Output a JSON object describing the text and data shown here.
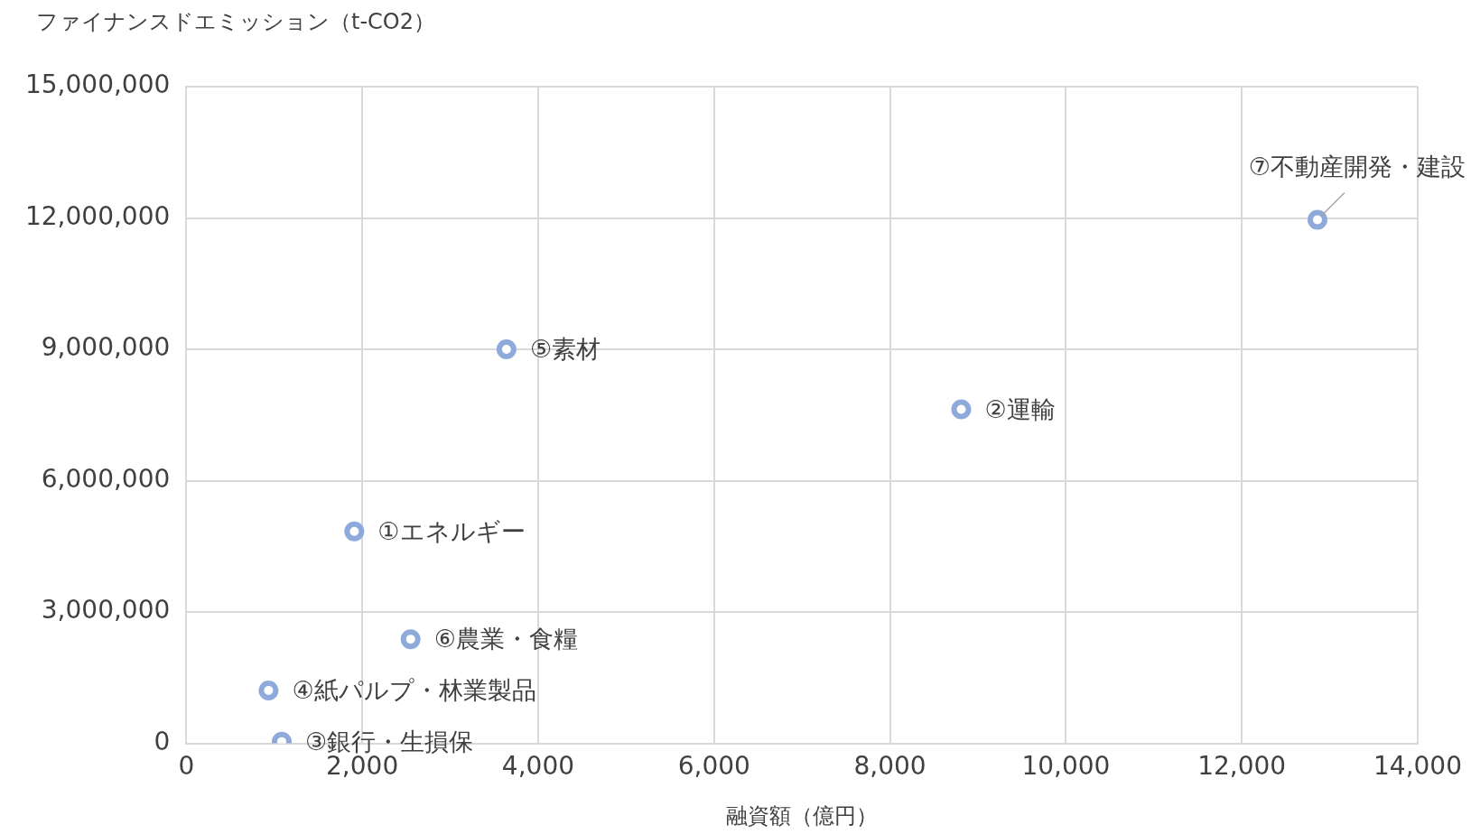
{
  "chart_data": {
    "type": "scatter",
    "xlabel": "融資額（億円）",
    "ylabel": "ファイナンスドエミッション（t-CO2）",
    "x": [
      1910,
      8810,
      1085,
      935,
      3640,
      2550,
      12860
    ],
    "values": [
      4840000,
      7630000,
      40000,
      1210000,
      9000000,
      2380000,
      11960000
    ],
    "color": "#8eaadb",
    "marker": "circle",
    "xlim": [
      0,
      14000
    ],
    "xticks": [
      0,
      {
        "value": 2000,
        "label": "2,000"
      },
      {
        "value": 4000,
        "label": "4,000"
      },
      {
        "value": 6000,
        "label": "6,000"
      },
      {
        "value": 8000,
        "label": "8,000"
      },
      {
        "value": 10000,
        "label": "10,000"
      },
      {
        "value": 12000,
        "label": "12,000"
      },
      {
        "value": 14000,
        "label": "14,000"
      }
    ],
    "ylim": [
      0,
      15000000
    ],
    "yticks": [
      0,
      {
        "value": 3000000,
        "label": "3,000,000"
      },
      {
        "value": 6000000,
        "label": "6,000,000"
      },
      {
        "value": 9000000,
        "label": "9,000,000"
      },
      {
        "value": 12000000,
        "label": "12,000,000"
      },
      {
        "value": 15000000,
        "label": "15,000,000"
      }
    ],
    "grid": true,
    "legend": false,
    "annotations": [
      {
        "text": "①エネルギー",
        "x": 1910,
        "y": 4840000
      },
      {
        "text": "②運輸",
        "x": 8810,
        "y": 7630000
      },
      {
        "text": "③銀行・生損保",
        "x": 1085,
        "y": 40000
      },
      {
        "text": "④紙パルプ・林業製品",
        "x": 935,
        "y": 1210000
      },
      {
        "text": "⑤素材",
        "x": 3640,
        "y": 9000000
      },
      {
        "text": "⑥農業・食糧",
        "x": 2550,
        "y": 2380000
      },
      {
        "text": "⑦不動産開発・建設",
        "x": 12860,
        "y": 11960000
      }
    ]
  }
}
